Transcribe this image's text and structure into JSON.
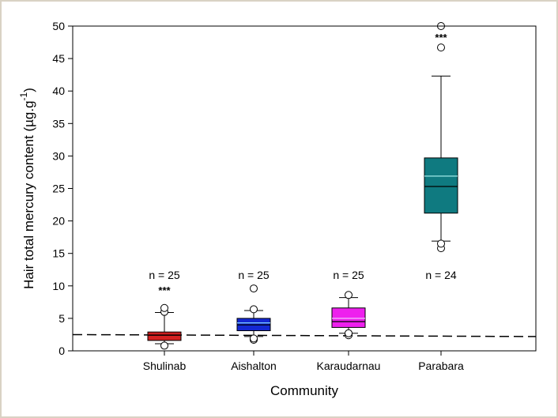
{
  "chart_data": {
    "type": "box",
    "xlabel": "Community",
    "ylabel": "Hair total mercury content (µg.g",
    "ylabel_sup": "-1",
    "ylabel_end": ")",
    "ylim": [
      0,
      50
    ],
    "yticks": [
      "0",
      "5",
      "10",
      "15",
      "20",
      "25",
      "30",
      "35",
      "40",
      "45",
      "50"
    ],
    "reference_line": {
      "style": "dashed",
      "y_start": 2.5,
      "y_end": 2.2
    },
    "categories": [
      "Shulinab",
      "Aishalton",
      "Karaudarnau",
      "Parabara"
    ],
    "boxes": [
      {
        "name": "Shulinab",
        "color": "#d42020",
        "mean_color": "#8a1010",
        "whisker_low": 1.1,
        "q1": 1.6,
        "median": 2.4,
        "mean": 2.5,
        "q3": 2.9,
        "whisker_high": 5.9,
        "outliers": [
          0.8,
          6.0,
          6.6
        ],
        "n_label": "n = 25",
        "significance": "***"
      },
      {
        "name": "Aishalton",
        "color": "#1428d4",
        "mean_color": "#7fd0ff",
        "whisker_low": 2.2,
        "q1": 3.1,
        "median": 4.0,
        "mean": 4.3,
        "q3": 5.0,
        "whisker_high": 6.2,
        "outliers": [
          1.7,
          1.9,
          6.4,
          9.6
        ],
        "n_label": "n = 25",
        "significance": ""
      },
      {
        "name": "Karaudarnau",
        "color": "#ee20ee",
        "mean_color": "#f0c0ff",
        "whisker_low": 2.7,
        "q1": 3.6,
        "median": 4.5,
        "mean": 5.0,
        "q3": 6.6,
        "whisker_high": 8.2,
        "outliers": [
          2.4,
          2.7,
          8.6
        ],
        "n_label": "n = 25",
        "significance": ""
      },
      {
        "name": "Parabara",
        "color": "#0f7a80",
        "mean_color": "#9fe8e8",
        "whisker_low": 16.9,
        "q1": 21.2,
        "median": 25.3,
        "mean": 26.9,
        "q3": 29.7,
        "whisker_high": 42.3,
        "outliers": [
          15.8,
          16.5,
          46.7,
          50.0
        ],
        "n_label": "n = 24",
        "significance": "***"
      }
    ]
  }
}
